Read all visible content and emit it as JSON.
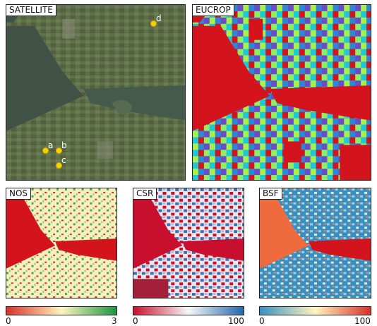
{
  "panels": {
    "satellite": {
      "label": "SATELLITE"
    },
    "eucrop": {
      "label": "EUCROP"
    },
    "nos": {
      "label": "NOS"
    },
    "csr": {
      "label": "CSR"
    },
    "bsf": {
      "label": "BSF"
    }
  },
  "markers": [
    {
      "id": "a",
      "label": "a"
    },
    {
      "id": "b",
      "label": "b"
    },
    {
      "id": "c",
      "label": "c"
    },
    {
      "id": "d",
      "label": "d"
    }
  ],
  "colorbars": {
    "nos": {
      "min": "0",
      "max": "3",
      "colors": [
        "#d73027",
        "#fff5bf",
        "#1a9641"
      ]
    },
    "csr": {
      "min": "0",
      "max": "100",
      "colors": [
        "#c8102e",
        "#f7f7f7",
        "#2166ac"
      ]
    },
    "bsf": {
      "min": "0",
      "max": "100",
      "colors": [
        "#3a8fc2",
        "#fff5bf",
        "#d73027"
      ]
    }
  },
  "colors": {
    "water_satellite": "#3f5245",
    "land_satellite": "#5d6f48",
    "water_red": "#d4141c"
  }
}
